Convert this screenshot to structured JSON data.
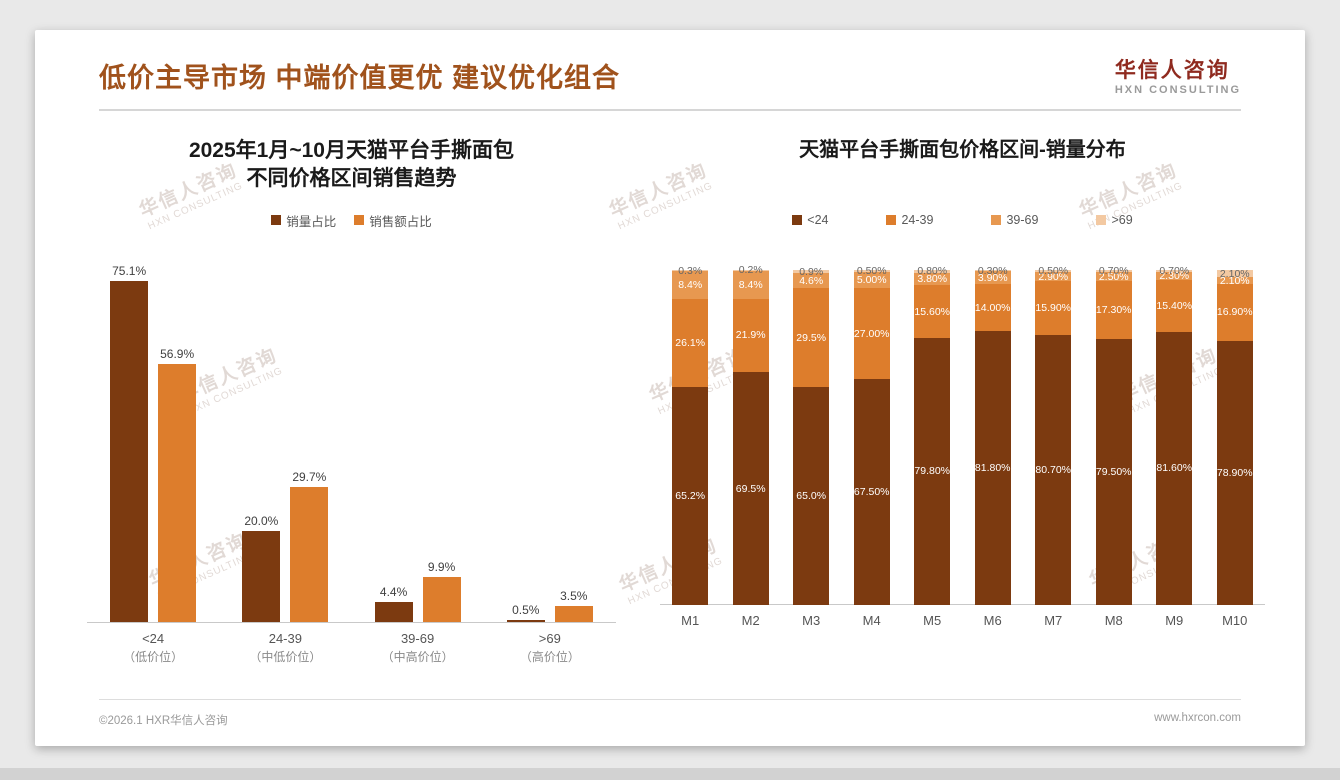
{
  "header": {
    "title": "低价主导市场 中端价值更优 建议优化组合",
    "logo": {
      "name": "华信人咨询",
      "sub": "HXN CONSULTING"
    }
  },
  "watermark": {
    "line1": "华信人咨询",
    "line2": "HXN CONSULTING"
  },
  "footer": {
    "left": "©2026.1 HXR华信人咨询",
    "right": "www.hxrcon.com"
  },
  "colors": {
    "title_brown": "#a0521c",
    "logo_red": "#8f2a1f",
    "dark_brown_bar": "#7c3a10",
    "orange_bar": "#dd7d2c",
    "light_orange_bar": "#e79850",
    "pale_orange_bar": "#f3c9a2"
  },
  "chart_data": [
    {
      "type": "bar",
      "stacked": false,
      "title_lines": [
        "2025年1月~10月天猫平台手撕面包",
        "不同价格区间销售趋势"
      ],
      "categories": [
        "<24",
        "24-39",
        "39-69",
        ">69"
      ],
      "category_sub": [
        "（低价位）",
        "（中低价位）",
        "（中高价位）",
        "（高价位）"
      ],
      "ylim": [
        0,
        80
      ],
      "grid": false,
      "legend_position": "top",
      "series": [
        {
          "name": "销量占比",
          "color": "#7c3a10",
          "values": [
            75.1,
            20.0,
            4.4,
            0.5
          ],
          "labels": [
            "75.1%",
            "20.0%",
            "4.4%",
            "0.5%"
          ]
        },
        {
          "name": "销售额占比",
          "color": "#dd7d2c",
          "values": [
            56.9,
            29.7,
            9.9,
            3.5
          ],
          "labels": [
            "56.9%",
            "29.7%",
            "9.9%",
            "3.5%"
          ]
        }
      ]
    },
    {
      "type": "bar",
      "stacked": true,
      "title": "天猫平台手撕面包价格区间-销量分布",
      "categories": [
        "M1",
        "M2",
        "M3",
        "M4",
        "M5",
        "M6",
        "M7",
        "M8",
        "M9",
        "M10"
      ],
      "ylim": [
        0,
        100
      ],
      "grid": false,
      "legend_position": "top",
      "series": [
        {
          "name": "<24",
          "color": "#7c3a10",
          "values": [
            65.2,
            69.5,
            65.0,
            67.5,
            79.8,
            81.8,
            80.7,
            79.5,
            81.6,
            78.9
          ],
          "labels": [
            "65.2%",
            "69.5%",
            "65.0%",
            "67.50%",
            "79.80%",
            "81.80%",
            "80.70%",
            "79.50%",
            "81.60%",
            "78.90%"
          ]
        },
        {
          "name": "24-39",
          "color": "#dd7d2c",
          "values": [
            26.1,
            21.9,
            29.5,
            27.0,
            15.6,
            14.0,
            15.9,
            17.3,
            15.4,
            16.9
          ],
          "labels": [
            "26.1%",
            "21.9%",
            "29.5%",
            "27.00%",
            "15.60%",
            "14.00%",
            "15.90%",
            "17.30%",
            "15.40%",
            "16.90%"
          ]
        },
        {
          "name": "39-69",
          "color": "#e79850",
          "values": [
            8.4,
            8.4,
            4.6,
            5.0,
            3.8,
            3.9,
            2.9,
            2.5,
            2.3,
            2.1
          ],
          "labels": [
            "8.4%",
            "8.4%",
            "4.6%",
            "5.00%",
            "3.80%",
            "3.90%",
            "2.90%",
            "2.50%",
            "2.30%",
            "2.10%"
          ]
        },
        {
          "name": ">69",
          "color": "#f3c9a2",
          "values": [
            0.3,
            0.2,
            0.9,
            0.5,
            0.8,
            0.3,
            0.5,
            0.7,
            0.7,
            2.1
          ],
          "labels": [
            "0.3%",
            "0.2%",
            "0.9%",
            "0.50%",
            "0.80%",
            "0.30%",
            "0.50%",
            "0.70%",
            "0.70%",
            "2.10%"
          ]
        }
      ]
    }
  ]
}
